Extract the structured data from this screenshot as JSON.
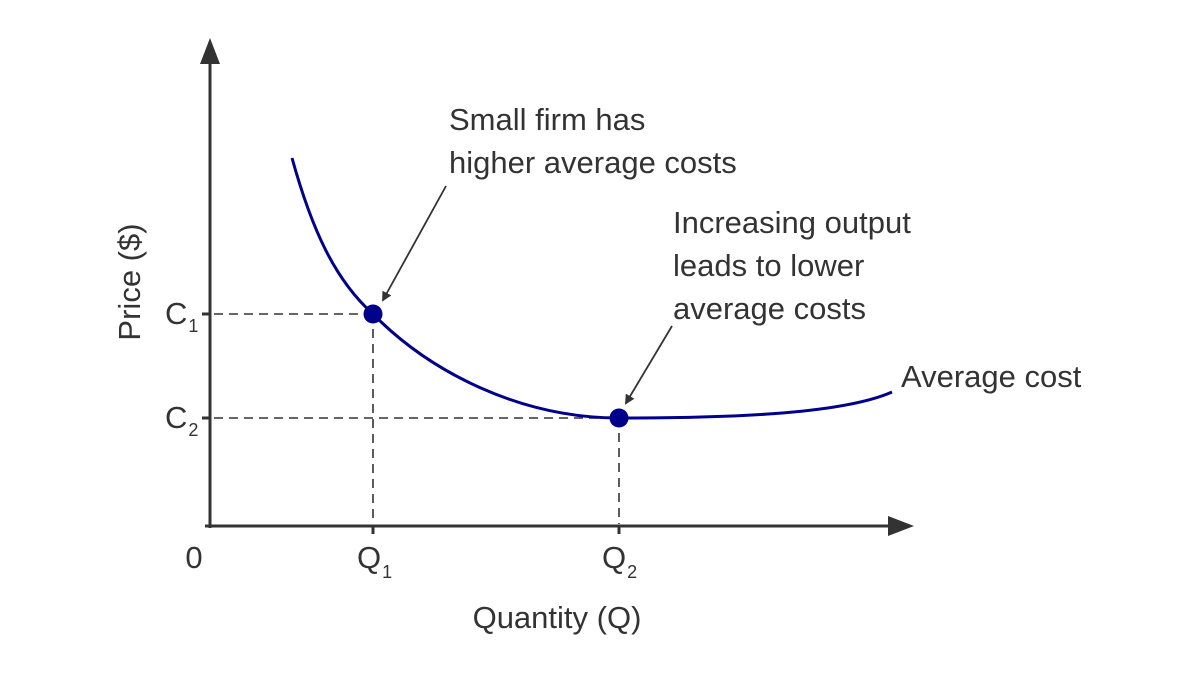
{
  "axes": {
    "y_label": "Price ($)",
    "x_label": "Quantity (Q)",
    "origin_label": "0"
  },
  "ticks": {
    "c1": {
      "main": "C",
      "sub": "1"
    },
    "c2": {
      "main": "C",
      "sub": "2"
    },
    "q1": {
      "main": "Q",
      "sub": "1"
    },
    "q2": {
      "main": "Q",
      "sub": "2"
    }
  },
  "curve": {
    "label": "Average cost"
  },
  "annotations": {
    "small_firm": [
      "Small firm has",
      "higher average costs"
    ],
    "increasing_output": [
      "Increasing output",
      "leads to lower",
      "average costs"
    ]
  },
  "colors": {
    "curve": "#00008b",
    "axis": "#333333",
    "text": "#333333"
  }
}
